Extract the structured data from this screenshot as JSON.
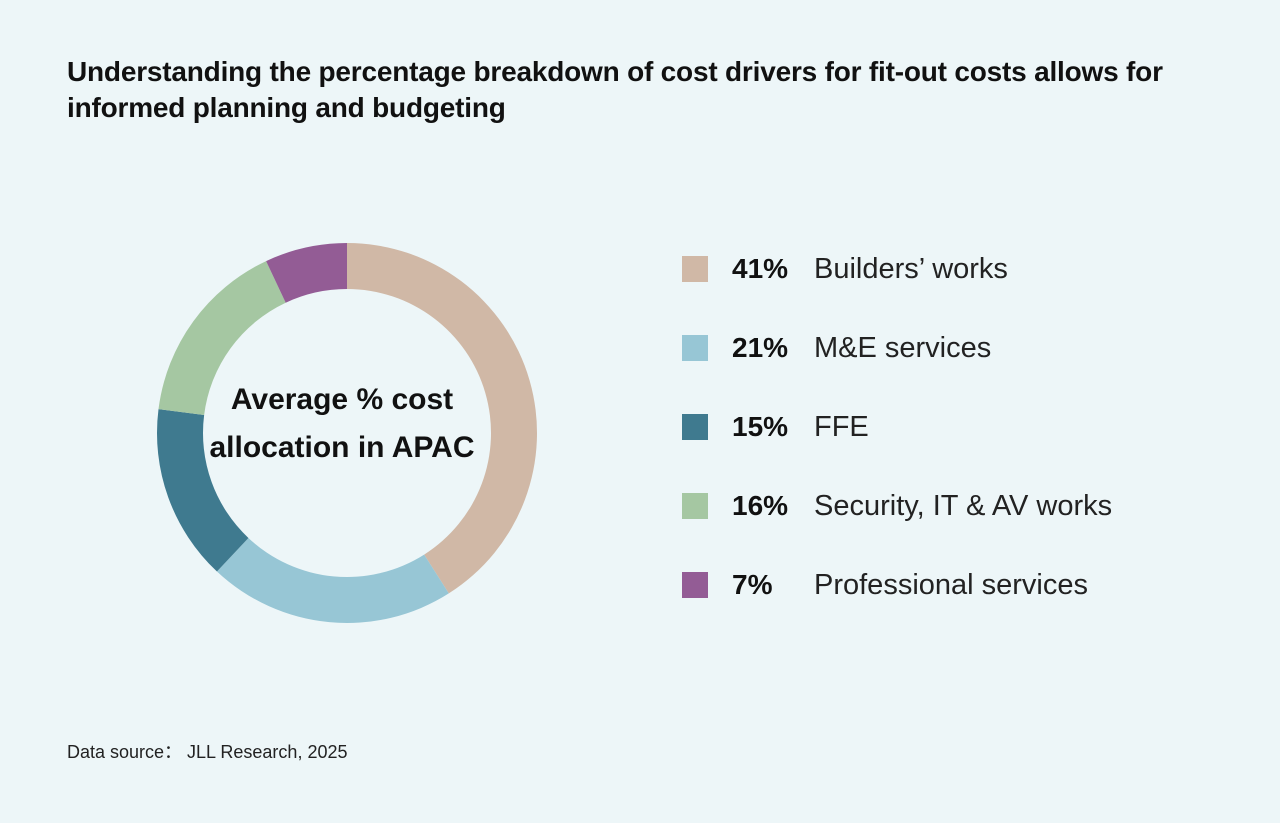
{
  "title": "Understanding the percentage breakdown of cost drivers for fit-out costs allows for informed planning and budgeting",
  "source": "Data source： JLL Research,  2025",
  "chart_data": {
    "type": "pie",
    "variant": "donut",
    "center_label": "Average % cost allocation in APAC",
    "title": "Average % cost allocation in APAC",
    "legend_position": "right",
    "slices": [
      {
        "label": "Builders’ works",
        "value": 41,
        "value_label": "41%",
        "color": "#d0b8a6"
      },
      {
        "label": "M&E services",
        "value": 21,
        "value_label": "21%",
        "color": "#97c6d5"
      },
      {
        "label": "FFE",
        "value": 15,
        "value_label": "15%",
        "color": "#3f7a8f"
      },
      {
        "label": "Security, IT & AV works",
        "value": 16,
        "value_label": "16%",
        "color": "#a5c7a2"
      },
      {
        "label": "Professional services",
        "value": 7,
        "value_label": "7%",
        "color": "#935c95"
      }
    ]
  },
  "colors": {
    "background": "#edf6f8",
    "text": "#111111"
  }
}
